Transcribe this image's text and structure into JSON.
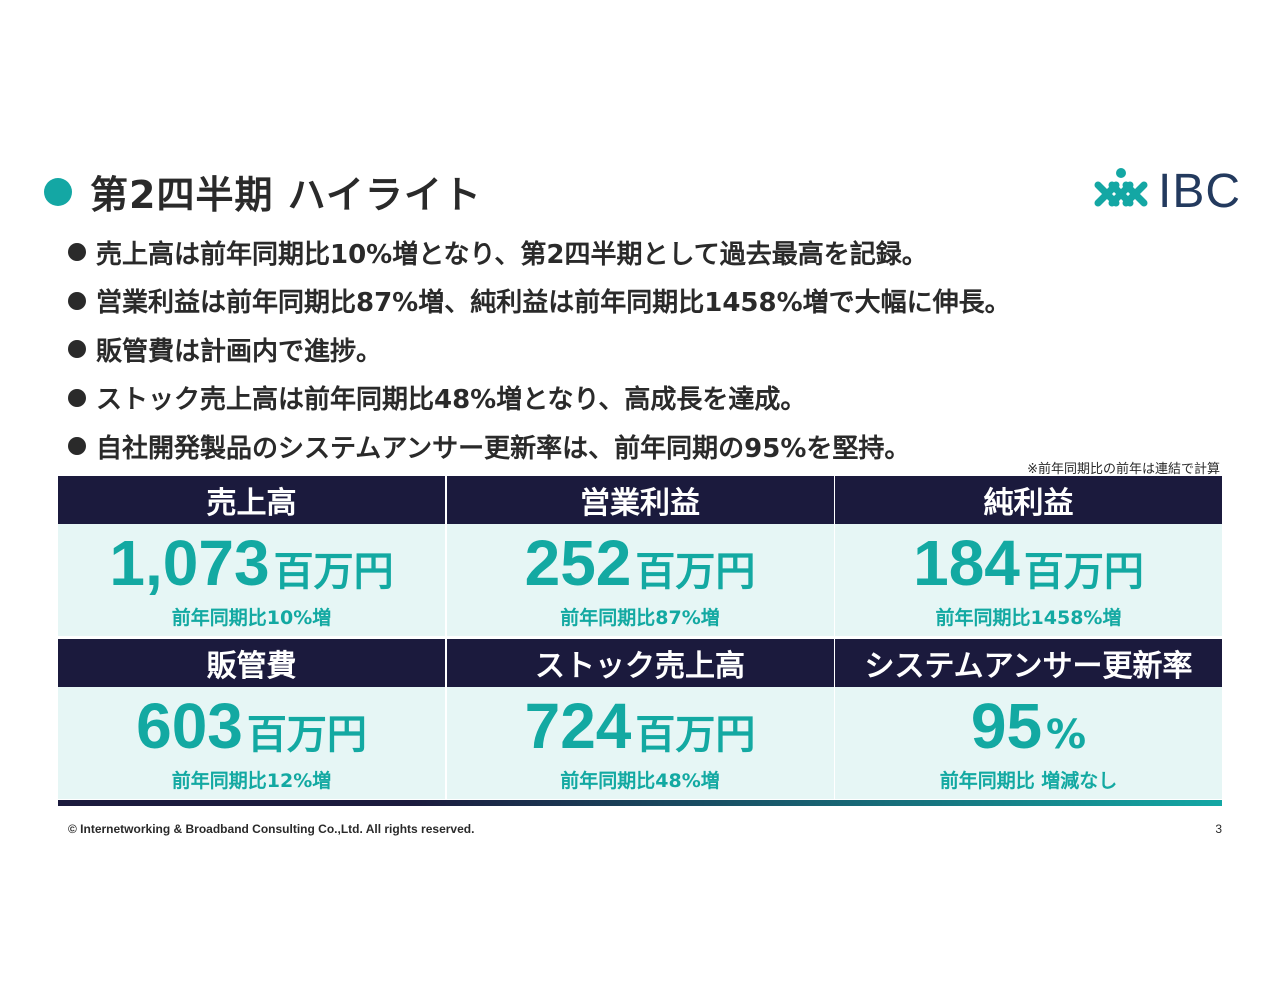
{
  "title": "第2四半期 ハイライト",
  "logo": {
    "text": "IBC",
    "icon": "ibc-lattice-logo"
  },
  "bullets": [
    "売上高は前年同期比10%増となり、第2四半期として過去最高を記録。",
    "営業利益は前年同期比87%増、純利益は前年同期比1458%増で大幅に伸長。",
    "販管費は計画内で進捗。",
    "ストック売上高は前年同期比48%増となり、高成長を達成。",
    "自社開発製品のシステムアンサー更新率は、前年同期の95%を堅持。"
  ],
  "note": "※前年同期比の前年は連結で計算",
  "metrics": [
    {
      "label": "売上高",
      "value": "1,073",
      "unit": "百万円",
      "sub": "前年同期比10%増"
    },
    {
      "label": "営業利益",
      "value": "252",
      "unit": "百万円",
      "sub": "前年同期比87%増"
    },
    {
      "label": "純利益",
      "value": "184",
      "unit": "百万円",
      "sub": "前年同期比1458%増"
    },
    {
      "label": "販管費",
      "value": "603",
      "unit": "百万円",
      "sub": "前年同期比12%増"
    },
    {
      "label": "ストック売上高",
      "value": "724",
      "unit": "百万円",
      "sub": "前年同期比48%増"
    },
    {
      "label": "システムアンサー更新率",
      "value": "95",
      "unit": "%",
      "sub": "前年同期比 増減なし"
    }
  ],
  "footer": {
    "copyright": "© Internetworking & Broadband Consulting Co.,Ltd. All rights reserved.",
    "page": "3"
  },
  "colors": {
    "accent": "#14a7a4",
    "navy": "#1b1a3d",
    "cell_bg": "#e6f6f5",
    "logo_text": "#233a5e"
  }
}
